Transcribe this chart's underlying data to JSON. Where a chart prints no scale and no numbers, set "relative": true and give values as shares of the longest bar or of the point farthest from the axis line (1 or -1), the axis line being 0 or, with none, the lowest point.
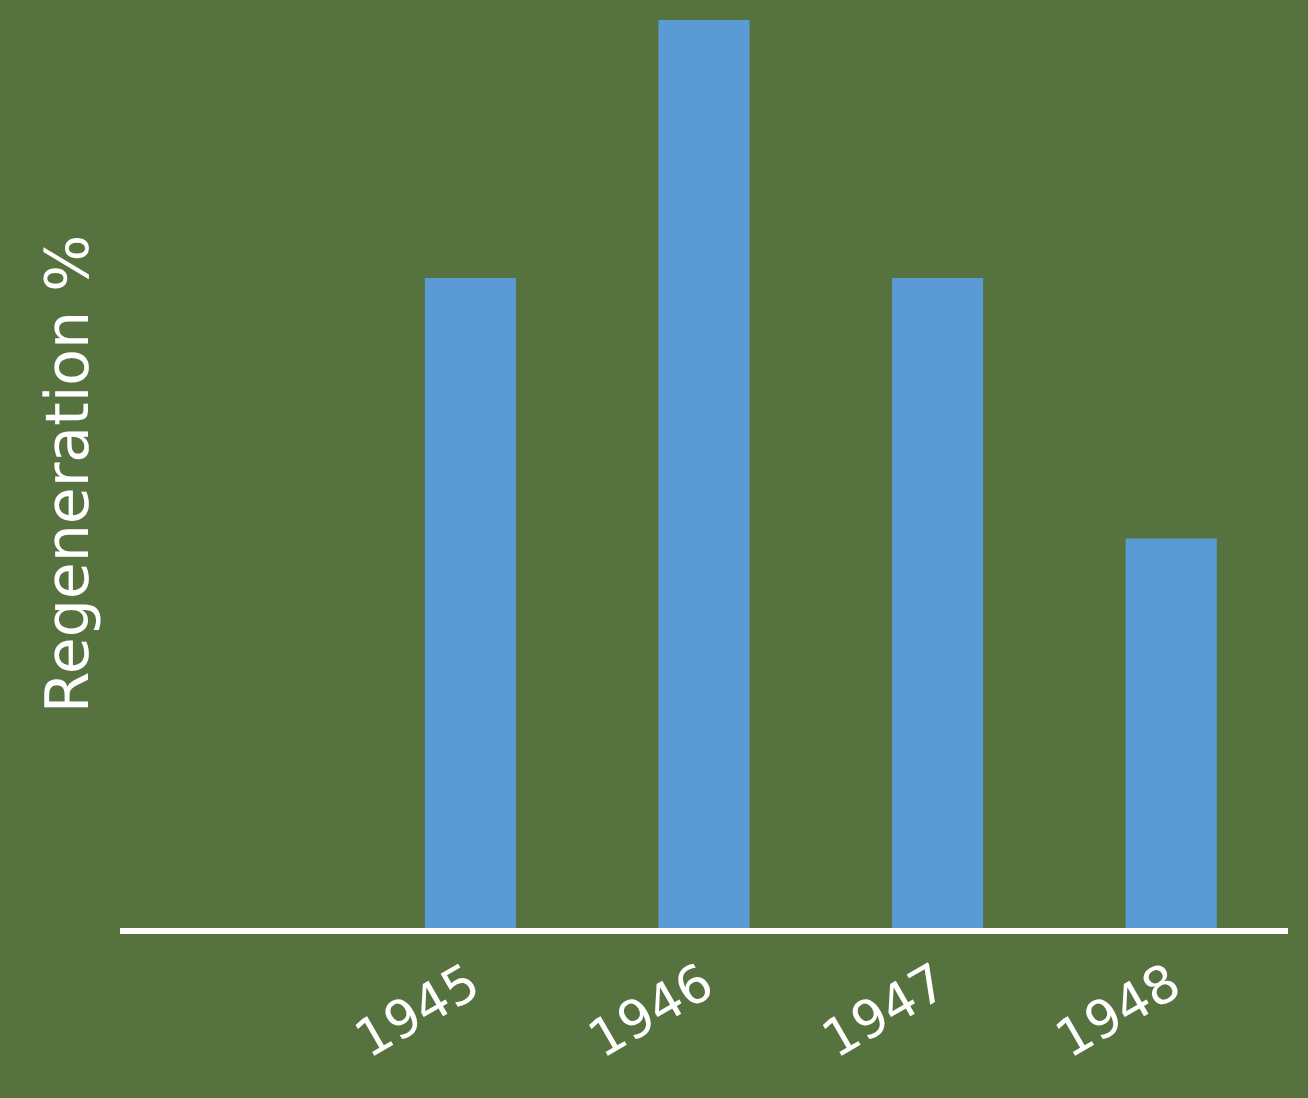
{
  "chart_data": {
    "type": "bar",
    "ylabel": "Regeneration %",
    "relative": true,
    "categories": [
      null,
      "1945",
      "1946",
      "1947",
      "1948"
    ],
    "values": [
      null,
      0.716,
      1,
      0.716,
      0.429
    ],
    "color": "#5b9bd5",
    "grid": false,
    "legend": false
  }
}
